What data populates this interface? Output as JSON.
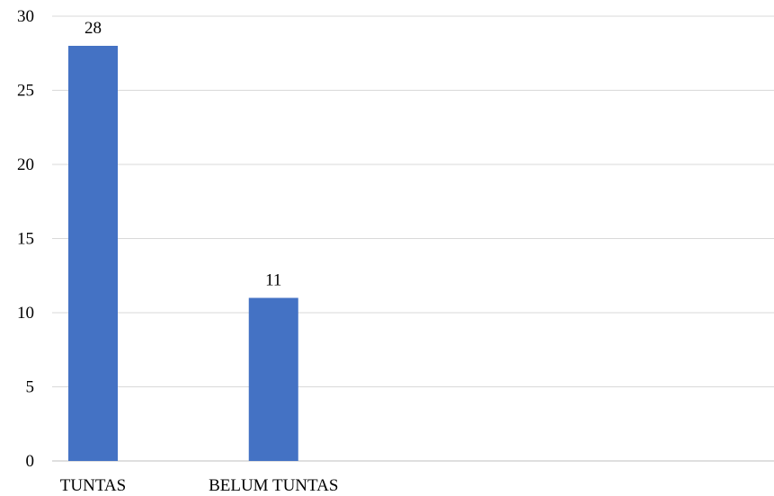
{
  "chart_data": {
    "type": "bar",
    "title": "",
    "xlabel": "",
    "ylabel": "",
    "categories": [
      "TUNTAS",
      "BELUM TUNTAS",
      "",
      ""
    ],
    "values": [
      28,
      11,
      null,
      null
    ],
    "data_labels": [
      "28",
      "11",
      "",
      ""
    ],
    "ylim": [
      0,
      30
    ],
    "yticks": [
      0,
      5,
      10,
      15,
      20,
      25,
      30
    ],
    "grid": true,
    "legend": "none",
    "bar_color": "#4472C4",
    "grid_color": "#D9D9D9"
  }
}
